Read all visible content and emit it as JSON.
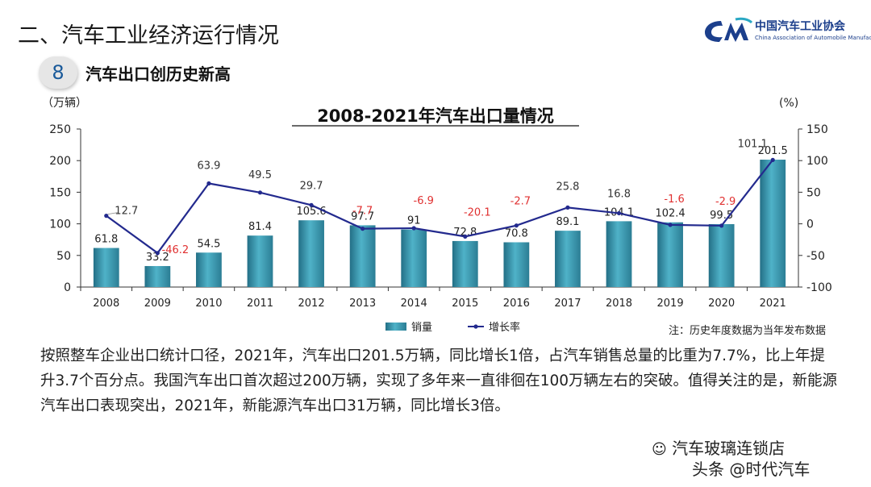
{
  "header": {
    "title": "二、汽车工业经济运行情况"
  },
  "logo": {
    "cn": "中国汽车工业协会",
    "en": "China Association of Automobile Manufacturers"
  },
  "section": {
    "number": "8",
    "title": "汽车出口创历史新高"
  },
  "chart_data": {
    "type": "bar+line",
    "title": "2008-2021年汽车出口量情况",
    "left_axis_unit": "（万辆）",
    "right_axis_unit": "(%)",
    "left_ylim": [
      0,
      250
    ],
    "left_ticks": [
      "0",
      "50",
      "100",
      "150",
      "200",
      "250"
    ],
    "right_ylim": [
      -100,
      150
    ],
    "right_ticks": [
      "-100",
      "-50",
      "0",
      "50",
      "100",
      "150"
    ],
    "categories": [
      "2008",
      "2009",
      "2010",
      "2011",
      "2012",
      "2013",
      "2014",
      "2015",
      "2016",
      "2017",
      "2018",
      "2019",
      "2020",
      "2021"
    ],
    "series": [
      {
        "name": "销量",
        "type": "bar",
        "axis": "left",
        "values": [
          61.8,
          33.2,
          54.5,
          81.4,
          105.6,
          97.7,
          91,
          72.8,
          70.8,
          89.1,
          104.1,
          102.4,
          99.5,
          201.5
        ],
        "labels": [
          "61.8",
          "33.2",
          "54.5",
          "81.4",
          "105.6",
          "97.7",
          "91",
          "72.8",
          "70.8",
          "89.1",
          "104.1",
          "102.4",
          "99.5",
          "201.5"
        ]
      },
      {
        "name": "增长率",
        "type": "line",
        "axis": "right",
        "values": [
          12.7,
          -46.2,
          63.9,
          49.5,
          29.7,
          -7.7,
          -6.9,
          -20.1,
          -2.7,
          25.8,
          16.8,
          -1.6,
          -2.9,
          101.1
        ],
        "labels": [
          "12.7",
          "-46.2",
          "63.9",
          "49.5",
          "29.7",
          "-7.7",
          "-6.9",
          "-20.1",
          "-2.7",
          "25.8",
          "16.8",
          "-1.6",
          "-2.9",
          "101.1"
        ]
      }
    ],
    "legend_position": "bottom",
    "note": "注：历史年度数据为当年发布数据",
    "colors": {
      "bar": "#3e9db5",
      "line": "#232a8e",
      "negative_label": "#e03030",
      "positive_label": "#333333"
    }
  },
  "paragraph": "按照整车企业出口统计口径，2021年，汽车出口201.5万辆，同比增长1倍，占汽车销售总量的比重为7.7%，比上年提升3.7个百分点。我国汽车出口首次超过200万辆，实现了多年来一直徘徊在100万辆左右的突破。值得关注的是，新能源汽车出口表现突出，2021年，新能源汽车出口31万辆，同比增长3倍。",
  "watermark": {
    "line1": "汽车玻璃连锁店",
    "line2": "头条 @时代汽车"
  }
}
